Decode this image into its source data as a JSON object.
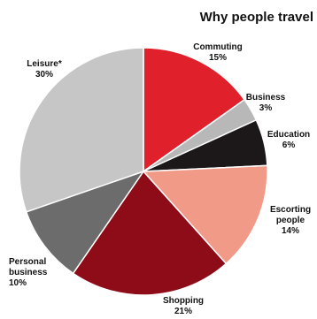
{
  "chart_data": {
    "type": "pie",
    "title": "Why people travel",
    "slices": [
      {
        "label": "Commuting",
        "value": 15,
        "value_label": "15%",
        "color": "#e0202a"
      },
      {
        "label": "Business",
        "value": 3,
        "value_label": "3%",
        "color": "#b8b8b8"
      },
      {
        "label": "Education",
        "value": 6,
        "value_label": "6%",
        "color": "#1c1718"
      },
      {
        "label": "Escorting people",
        "value": 14,
        "value_label": "14%",
        "color": "#f29a88"
      },
      {
        "label": "Shopping",
        "value": 21,
        "value_label": "21%",
        "color": "#8e0b18"
      },
      {
        "label": "Personal business",
        "value": 10,
        "value_label": "10%",
        "color": "#6c6c6c"
      },
      {
        "label": "Leisure*",
        "value": 30,
        "value_label": "30%",
        "color": "#c6c6c6"
      }
    ],
    "start": "12 o'clock",
    "direction": "clockwise"
  }
}
